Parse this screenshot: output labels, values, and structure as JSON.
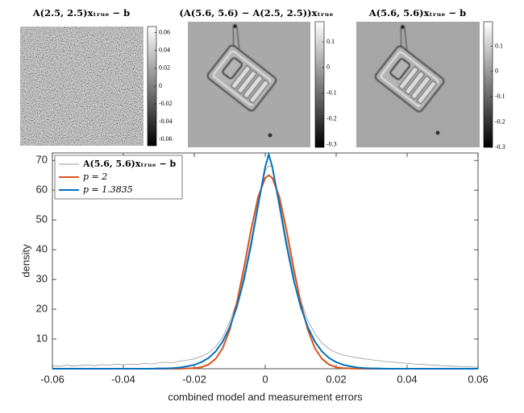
{
  "chart_data": [
    {
      "type": "image",
      "title": "A(2.5, 2.5)xₜᵣᵤₑ − b",
      "ylim": [
        -0.067,
        0.067
      ],
      "yticks": [
        0.06,
        0.04,
        0.02,
        0,
        -0.02,
        -0.04,
        -0.06
      ]
    },
    {
      "type": "image",
      "title": "(A(5.6, 5.6) − A(2.5, 2.5))xₜᵣᵤₑ",
      "ylim": [
        -0.31,
        0.178
      ],
      "yticks": [
        0.1,
        0,
        -0.1,
        -0.2,
        -0.3
      ]
    },
    {
      "type": "image",
      "title": "A(5.6, 5.6)xₜᵣᵤₑ − b",
      "ylim": [
        -0.3,
        0.197
      ],
      "yticks": [
        0.1,
        0,
        -0.1,
        -0.2,
        -0.3
      ]
    },
    {
      "type": "line",
      "xlabel": "combined model and measurement errors",
      "ylabel": "density",
      "xlim": [
        -0.06,
        0.06
      ],
      "ylim": [
        0,
        72.5
      ],
      "xticks": [
        -0.06,
        -0.04,
        -0.02,
        0,
        0.02,
        0.04,
        0.06
      ],
      "yticks": [
        10,
        20,
        30,
        40,
        50,
        60,
        70
      ],
      "legend": "upper left",
      "x": [
        -0.06,
        -0.058,
        -0.056,
        -0.054,
        -0.052,
        -0.05,
        -0.048,
        -0.046,
        -0.044,
        -0.042,
        -0.04,
        -0.038,
        -0.036,
        -0.034,
        -0.032,
        -0.03,
        -0.028,
        -0.026,
        -0.024,
        -0.022,
        -0.02,
        -0.018,
        -0.016,
        -0.014,
        -0.012,
        -0.01,
        -0.008,
        -0.006,
        -0.004,
        -0.002,
        0,
        0.001,
        0.002,
        0.004,
        0.006,
        0.008,
        0.01,
        0.012,
        0.014,
        0.016,
        0.018,
        0.02,
        0.022,
        0.024,
        0.026,
        0.028,
        0.03,
        0.032,
        0.034,
        0.036,
        0.038,
        0.04,
        0.042,
        0.044,
        0.046,
        0.048,
        0.05,
        0.052,
        0.054,
        0.056,
        0.058,
        0.06
      ],
      "series": [
        {
          "name": "A(5.6, 5.6)xₜᵣᵤₑ − b",
          "color": "#999999",
          "values": [
            1.0,
            0.8,
            1.2,
            0.9,
            1.1,
            1.3,
            1.0,
            1.4,
            1.2,
            1.5,
            1.3,
            1.6,
            1.4,
            1.8,
            1.6,
            2.0,
            2.2,
            2.0,
            2.6,
            2.9,
            3.3,
            4.2,
            5.3,
            7.4,
            10.6,
            15.8,
            22.6,
            31.5,
            43.2,
            56.0,
            66.5,
            68.2,
            67.8,
            56.3,
            43.5,
            31.8,
            23.1,
            16.2,
            11.8,
            8.6,
            6.7,
            5.4,
            4.6,
            4.1,
            3.7,
            3.3,
            3.0,
            2.7,
            2.4,
            2.2,
            2.0,
            1.8,
            1.6,
            1.5,
            1.3,
            1.2,
            1.0,
            0.9,
            0.8,
            0.7,
            0.6,
            0.5
          ]
        },
        {
          "name": "p = 2",
          "color": "#d95319",
          "values": [
            0,
            0,
            0,
            0,
            0,
            0,
            0,
            0,
            0,
            0,
            0,
            0,
            0,
            0,
            0,
            0,
            0,
            0,
            0,
            0.1,
            0.2,
            0.5,
            1.4,
            3.3,
            6.9,
            13.1,
            22.2,
            33.9,
            46.6,
            57.7,
            64.1,
            65.0,
            64.1,
            57.7,
            46.6,
            33.9,
            22.2,
            13.1,
            6.9,
            3.3,
            1.4,
            0.5,
            0.2,
            0.1,
            0,
            0,
            0,
            0,
            0,
            0,
            0,
            0,
            0,
            0,
            0,
            0,
            0,
            0,
            0,
            0,
            0,
            0
          ]
        },
        {
          "name": "p = 1.3835",
          "color": "#0072bd",
          "values": [
            0,
            0,
            0,
            0,
            0,
            0,
            0,
            0,
            0,
            0,
            0,
            0,
            0,
            0,
            0,
            0.1,
            0.1,
            0.2,
            0.4,
            0.8,
            1.3,
            2.2,
            3.6,
            5.8,
            9.1,
            14.0,
            20.8,
            29.9,
            41.5,
            54.9,
            67.8,
            72.0,
            67.8,
            54.9,
            41.5,
            29.9,
            20.8,
            14.0,
            9.1,
            5.8,
            3.6,
            2.2,
            1.3,
            0.8,
            0.4,
            0.2,
            0.1,
            0.1,
            0,
            0,
            0,
            0,
            0,
            0,
            0,
            0,
            0,
            0,
            0,
            0,
            0,
            0
          ]
        }
      ]
    }
  ]
}
